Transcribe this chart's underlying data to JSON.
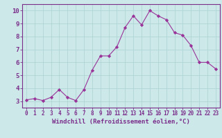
{
  "x": [
    0,
    1,
    2,
    3,
    4,
    5,
    6,
    7,
    8,
    9,
    10,
    11,
    12,
    13,
    14,
    15,
    16,
    17,
    18,
    19,
    20,
    21,
    22,
    23
  ],
  "y": [
    3.1,
    3.2,
    3.05,
    3.3,
    3.9,
    3.3,
    3.05,
    3.9,
    5.4,
    6.5,
    6.5,
    7.2,
    8.7,
    9.6,
    8.9,
    10.0,
    9.6,
    9.3,
    8.3,
    8.1,
    7.3,
    6.0,
    6.0,
    5.5
  ],
  "line_color": "#993399",
  "marker": "D",
  "markersize": 2.2,
  "linewidth": 0.8,
  "background_color": "#cce8e8",
  "grid_color": "#b0d4d4",
  "xlabel": "Windchill (Refroidissement éolien,°C)",
  "xlim": [
    -0.5,
    23.5
  ],
  "ylim": [
    2.5,
    10.5
  ],
  "yticks": [
    3,
    4,
    5,
    6,
    7,
    8,
    9,
    10
  ],
  "xticks": [
    0,
    1,
    2,
    3,
    4,
    5,
    6,
    7,
    8,
    9,
    10,
    11,
    12,
    13,
    14,
    15,
    16,
    17,
    18,
    19,
    20,
    21,
    22,
    23
  ],
  "tick_color": "#7b2d8b",
  "spine_color": "#7b2d8b",
  "xlabel_fontsize": 6.5,
  "xtick_fontsize": 5.5,
  "ytick_fontsize": 6.5
}
